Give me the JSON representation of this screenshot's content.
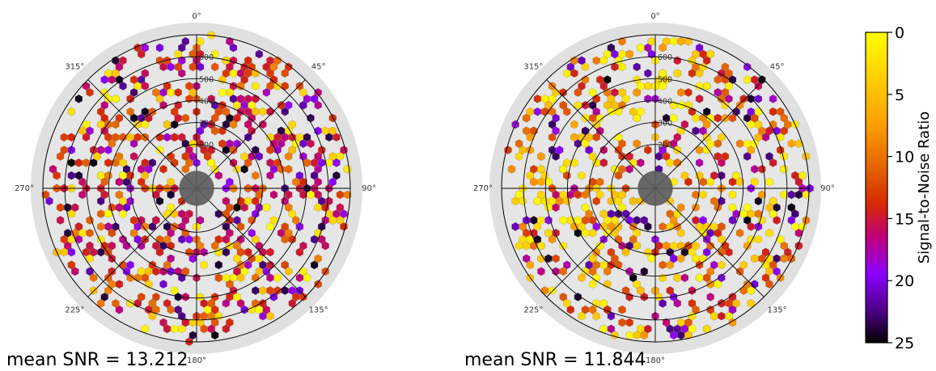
{
  "chart_data": {
    "type": "polar-hexbin",
    "colorbar": {
      "label": "Signal-to-Noise Ratio",
      "range": [
        0,
        25
      ],
      "ticks": [
        0,
        5,
        10,
        15,
        20,
        25
      ],
      "inverted": true,
      "colormap": "gnuplot",
      "stops": [
        "#000000",
        "#4b0082",
        "#8b00ff",
        "#c0007a",
        "#d62a00",
        "#e86a00",
        "#ffa500",
        "#ffd700",
        "#ffff00"
      ]
    },
    "panels": [
      {
        "angle_ticks": [
          "0°",
          "45°",
          "90°",
          "135°",
          "180°",
          "225°",
          "270°",
          "315°"
        ],
        "radial_ticks": [
          200,
          300,
          400,
          500,
          600
        ],
        "radial_max": 700,
        "center_hole_radius": 80,
        "annotation": "mean SNR = 13.212",
        "mean_snr": 13.212
      },
      {
        "angle_ticks": [
          "0°",
          "45°",
          "90°",
          "135°",
          "180°",
          "225°",
          "270°",
          "315°"
        ],
        "radial_ticks": [
          200,
          300,
          400,
          500,
          600
        ],
        "radial_max": 700,
        "center_hole_radius": 80,
        "annotation": "mean SNR = 11.844",
        "mean_snr": 11.844
      }
    ],
    "colors": {
      "outer_ring": "#e0e0e0",
      "inner_bg": "#e6e6e6",
      "center_hole": "#5a5a5a",
      "grid": "#000000",
      "hex_edge": "#888888"
    }
  }
}
